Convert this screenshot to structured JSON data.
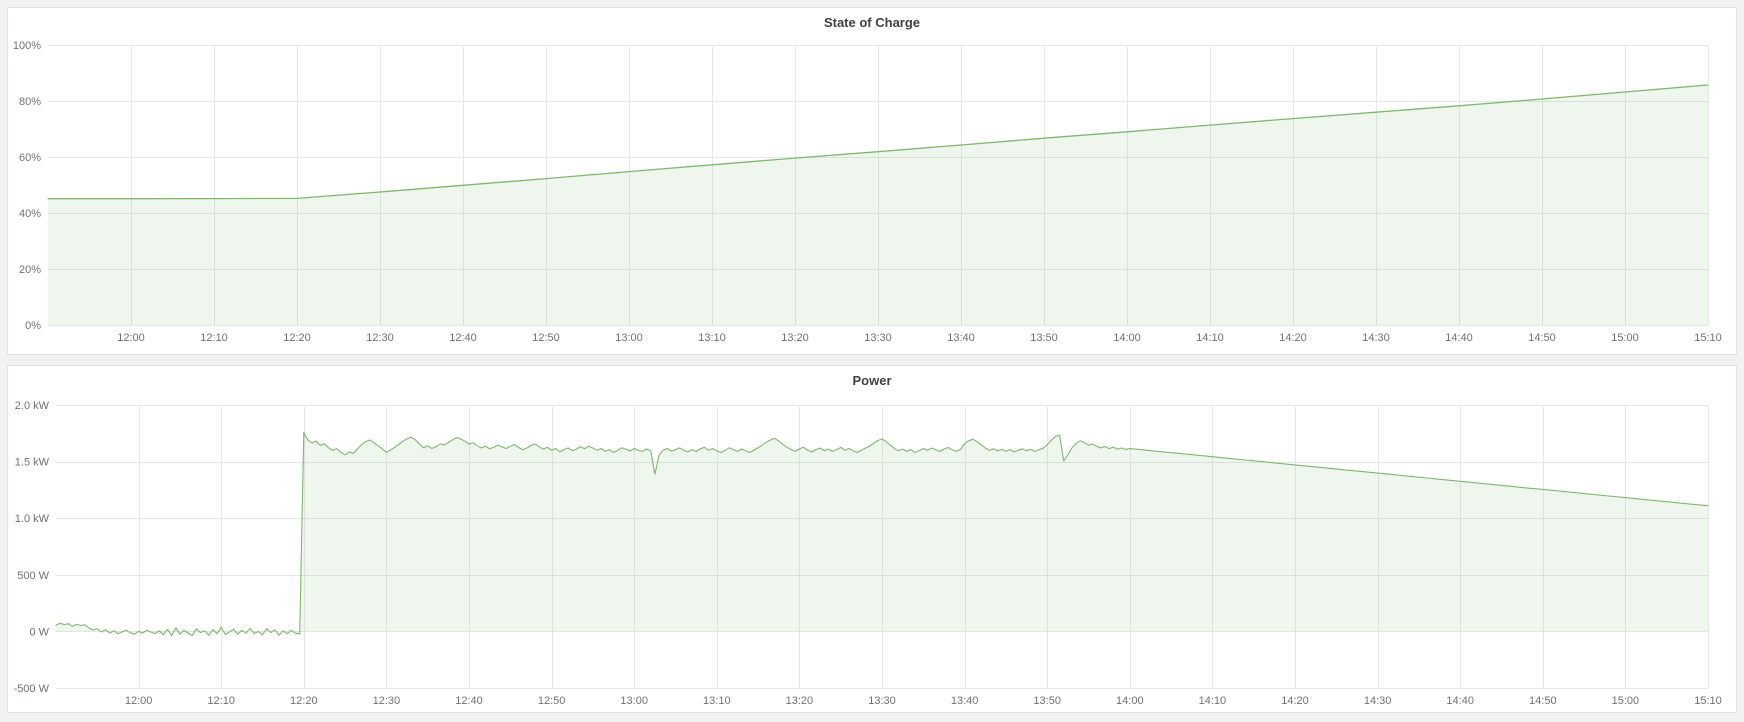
{
  "page": {
    "background": "#f1f2f2",
    "panel_background": "#ffffff",
    "accent_green": "#7db96d"
  },
  "chart_data": [
    {
      "type": "area",
      "title": "State of Charge",
      "unit": "percent",
      "grid": true,
      "legend": "none",
      "xlim": [
        0,
        200
      ],
      "ylim": [
        0,
        100
      ],
      "x_ticks": {
        "first": 10,
        "step": 10,
        "labels": [
          "12:00",
          "12:10",
          "12:20",
          "12:30",
          "12:40",
          "12:50",
          "13:00",
          "13:10",
          "13:20",
          "13:30",
          "13:40",
          "13:50",
          "14:00",
          "14:10",
          "14:20",
          "14:30",
          "14:40",
          "14:50",
          "15:00",
          "15:10"
        ]
      },
      "y_ticks": {
        "values": [
          0,
          20,
          40,
          60,
          80,
          100
        ],
        "labels": [
          "0%",
          "20%",
          "40%",
          "60%",
          "80%",
          "100%"
        ]
      },
      "series": [
        {
          "name": "State of Charge",
          "color": "#7db96d",
          "fill_opacity": 0.12,
          "fill_to": 0,
          "x_unit": "minutes_after_11_50",
          "segments": [
            {
              "start": 0,
              "step": 10,
              "values": [
                45.1,
                45.1,
                45.15,
                45.2
              ]
            },
            {
              "start": 40,
              "step": 10,
              "values": [
                47.5,
                49.9,
                52.3,
                54.8,
                57.2,
                59.6,
                61.9,
                64.3,
                66.7,
                69.0,
                71.4,
                73.7,
                76.0,
                78.3,
                80.7,
                83.2,
                85.7
              ]
            }
          ]
        }
      ]
    },
    {
      "type": "area",
      "title": "Power",
      "unit": "watt",
      "grid": true,
      "legend": "none",
      "xlim": [
        0,
        200
      ],
      "ylim": [
        -500,
        2000
      ],
      "x_ticks": {
        "first": 10,
        "step": 10,
        "labels": [
          "12:00",
          "12:10",
          "12:20",
          "12:30",
          "12:40",
          "12:50",
          "13:00",
          "13:10",
          "13:20",
          "13:30",
          "13:40",
          "13:50",
          "14:00",
          "14:10",
          "14:20",
          "14:30",
          "14:40",
          "14:50",
          "15:00",
          "15:10"
        ]
      },
      "y_ticks": {
        "values": [
          -500,
          0,
          500,
          1000,
          1500,
          2000
        ],
        "labels": [
          "-500 W",
          "0 W",
          "500 W",
          "1.0 kW",
          "1.5 kW",
          "2.0 kW"
        ]
      },
      "series": [
        {
          "name": "Power",
          "color": "#7db96d",
          "fill_opacity": 0.12,
          "fill_to": 0,
          "x_unit": "minutes_after_11_50",
          "segments": [
            {
              "start": 0,
              "step": 0.5,
              "values": [
                55,
                72,
                60,
                68,
                45,
                62,
                52,
                58,
                30,
                12,
                25,
                -5,
                15,
                -15,
                6,
                -20,
                -4,
                10,
                -12,
                -25,
                0,
                -15,
                10,
                -6,
                -20,
                5,
                -30,
                18,
                -38,
                32,
                -24,
                10,
                -15,
                -38,
                24,
                -10,
                5,
                -34,
                14,
                -20,
                38,
                -28,
                -5,
                20,
                -26,
                10,
                -16,
                28,
                -20,
                0,
                -30,
                24,
                -10,
                14,
                -34,
                5,
                -20,
                10,
                -16,
                -24
              ]
            },
            {
              "start": 30,
              "step": 0.5,
              "values": [
                1758,
                1690,
                1665,
                1682,
                1642,
                1658,
                1622,
                1600,
                1614,
                1582,
                1560,
                1586,
                1572,
                1612,
                1650,
                1676,
                1692,
                1666,
                1640,
                1612,
                1582,
                1602,
                1626,
                1650,
                1680,
                1702,
                1716,
                1692,
                1656,
                1622,
                1640,
                1616,
                1632,
                1656,
                1646,
                1670,
                1692,
                1712,
                1700,
                1680,
                1656,
                1666,
                1640,
                1620,
                1636,
                1612,
                1626,
                1646,
                1630,
                1616,
                1636,
                1650,
                1624,
                1606,
                1620,
                1642,
                1656,
                1630,
                1610,
                1626,
                1600,
                1616,
                1586,
                1606,
                1620,
                1596,
                1610,
                1632,
                1614,
                1636,
                1620,
                1600,
                1616,
                1590,
                1606,
                1580,
                1600,
                1622,
                1610,
                1594,
                1616,
                1600,
                1590,
                1612,
                1596,
                1390,
                1556,
                1600,
                1616,
                1592,
                1606,
                1622,
                1600,
                1586,
                1606,
                1590,
                1612,
                1626,
                1600,
                1616,
                1596,
                1580,
                1600,
                1622,
                1606,
                1590,
                1612,
                1596,
                1580,
                1602,
                1622,
                1646,
                1672,
                1692,
                1706,
                1682,
                1652,
                1626,
                1606,
                1590,
                1612,
                1626,
                1600,
                1586,
                1606,
                1620,
                1596,
                1610,
                1590,
                1606,
                1626,
                1600,
                1616,
                1596,
                1580,
                1600,
                1620,
                1636,
                1662,
                1686,
                1700,
                1676,
                1646,
                1616,
                1596,
                1610,
                1590,
                1606,
                1580,
                1596,
                1616,
                1600,
                1620,
                1605,
                1590,
                1610,
                1625,
                1605,
                1590,
                1608,
                1660,
                1684,
                1698,
                1676,
                1648,
                1620,
                1600,
                1614,
                1596,
                1608,
                1592,
                1606,
                1586,
                1600,
                1612,
                1596,
                1608,
                1590,
                1604,
                1618,
                1648,
                1688,
                1722,
                1735,
                1505,
                1558,
                1622,
                1662,
                1684,
                1668,
                1645,
                1655,
                1635,
                1620,
                1634,
                1615,
                1628,
                1610,
                1620,
                1608,
                1615
              ]
            },
            {
              "start": 132,
              "step": 2,
              "values": [
                1601,
                1586,
                1572,
                1557,
                1543,
                1528,
                1514,
                1500,
                1485,
                1471,
                1456,
                1442,
                1427,
                1413,
                1398,
                1384,
                1369,
                1355,
                1340,
                1326,
                1312,
                1297,
                1283,
                1268,
                1254,
                1239,
                1225,
                1210,
                1196,
                1182,
                1167,
                1153,
                1138,
                1124,
                1110
              ]
            }
          ]
        }
      ]
    }
  ]
}
